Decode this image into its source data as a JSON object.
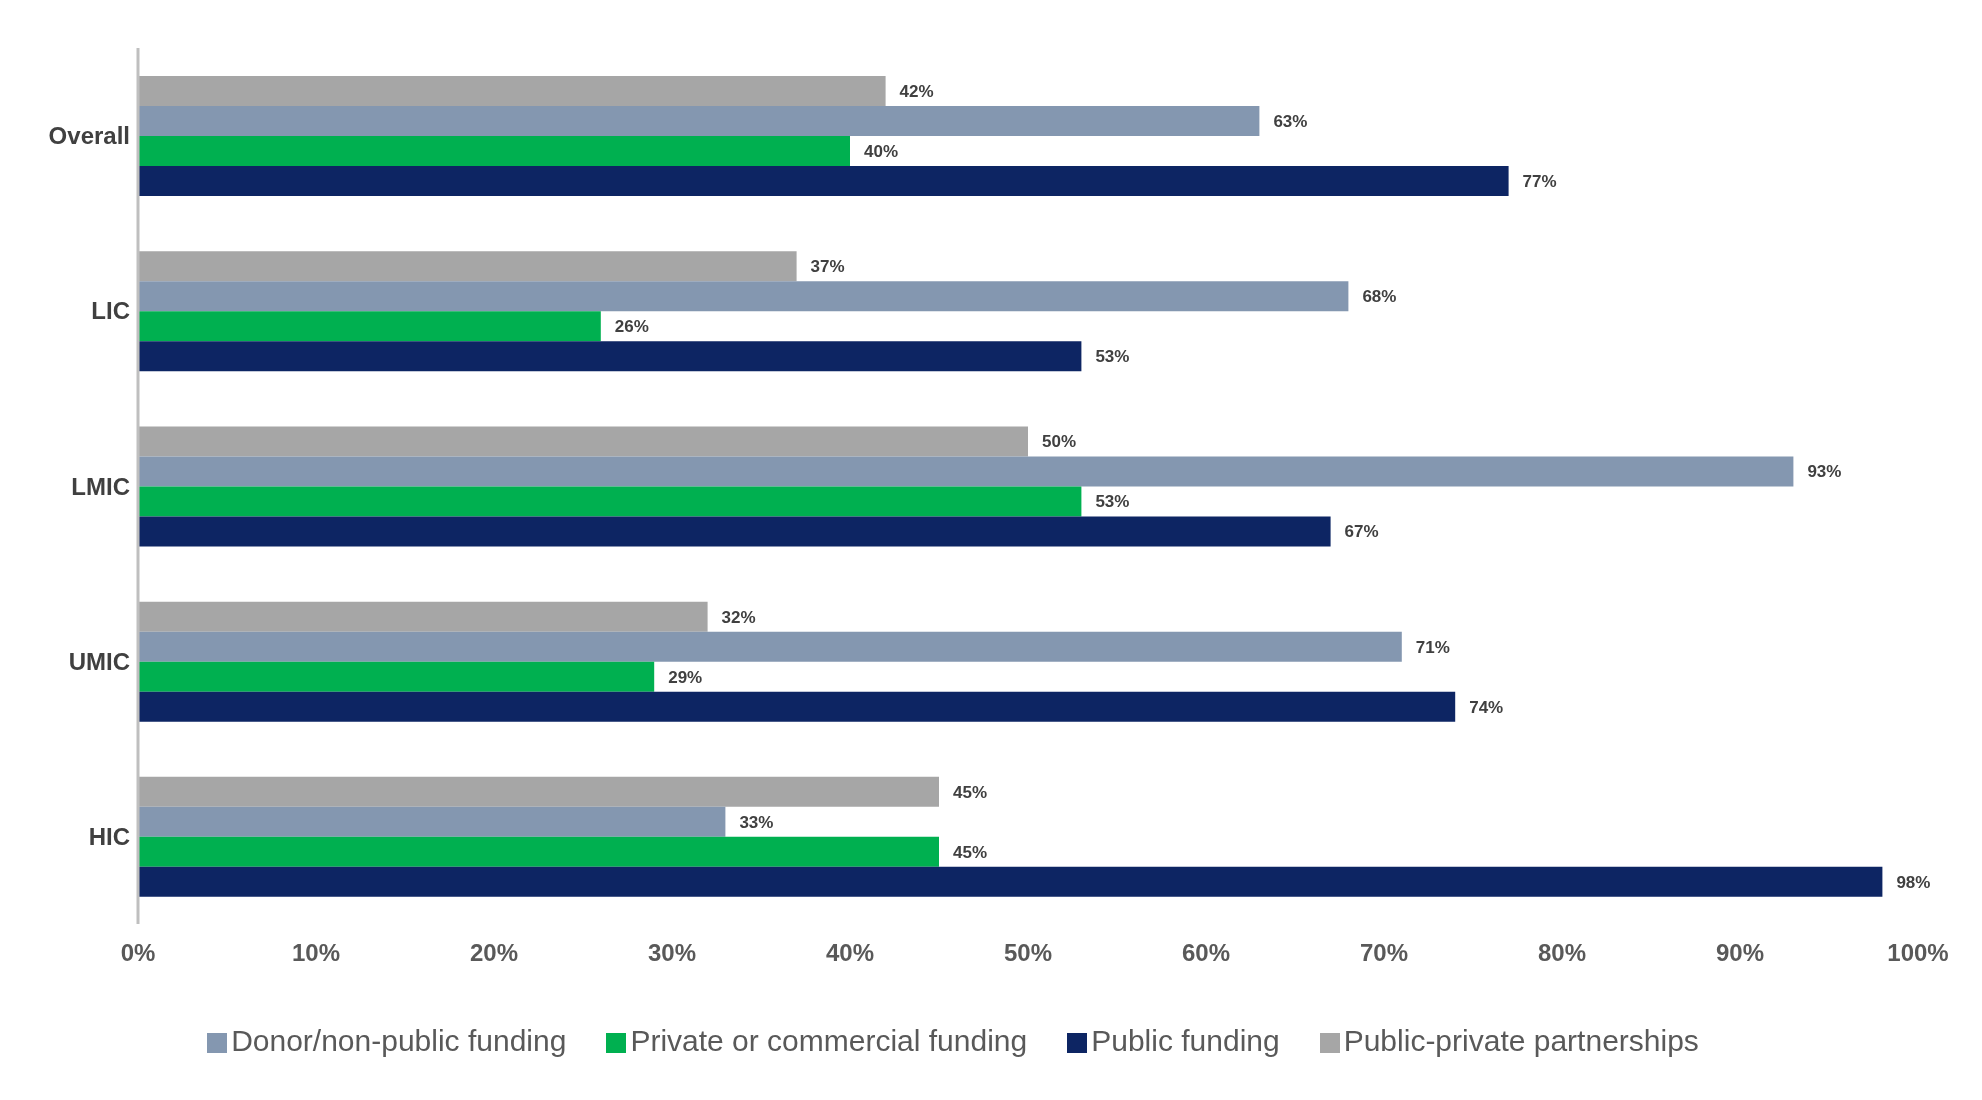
{
  "chart_data": {
    "type": "bar",
    "orientation": "horizontal",
    "categories": [
      "Overall",
      "LIC",
      "LMIC",
      "UMIC",
      "HIC"
    ],
    "series": [
      {
        "name": "Public-private partnerships",
        "color": "#a6a6a6",
        "values": [
          42,
          37,
          50,
          32,
          45
        ],
        "value_labels": [
          "42%",
          "37%",
          "50%",
          "32%",
          "45%"
        ]
      },
      {
        "name": "Donor/non-public funding",
        "color": "#8497b0",
        "values": [
          63,
          68,
          93,
          71,
          33
        ],
        "value_labels": [
          "63%",
          "68%",
          "93%",
          "71%",
          "33%"
        ]
      },
      {
        "name": "Private or commercial funding",
        "color": "#00b050",
        "values": [
          40,
          26,
          53,
          29,
          45
        ],
        "value_labels": [
          "40%",
          "26%",
          "53%",
          "29%",
          "45%"
        ]
      },
      {
        "name": "Public funding",
        "color": "#0d2563",
        "values": [
          77,
          53,
          67,
          74,
          98
        ],
        "value_labels": [
          "77%",
          "53%",
          "67%",
          "74%",
          "98%"
        ]
      }
    ],
    "xlim": [
      0,
      100
    ],
    "xticks": [
      {
        "value": 0,
        "label": "0%"
      },
      {
        "value": 10,
        "label": "10%"
      },
      {
        "value": 20,
        "label": "20%"
      },
      {
        "value": 30,
        "label": "30%"
      },
      {
        "value": 40,
        "label": "40%"
      },
      {
        "value": 50,
        "label": "50%"
      },
      {
        "value": 60,
        "label": "60%"
      },
      {
        "value": 70,
        "label": "70%"
      },
      {
        "value": 80,
        "label": "80%"
      },
      {
        "value": 90,
        "label": "90%"
      },
      {
        "value": 100,
        "label": "100%"
      }
    ],
    "grid": false,
    "legend": "bottom"
  }
}
